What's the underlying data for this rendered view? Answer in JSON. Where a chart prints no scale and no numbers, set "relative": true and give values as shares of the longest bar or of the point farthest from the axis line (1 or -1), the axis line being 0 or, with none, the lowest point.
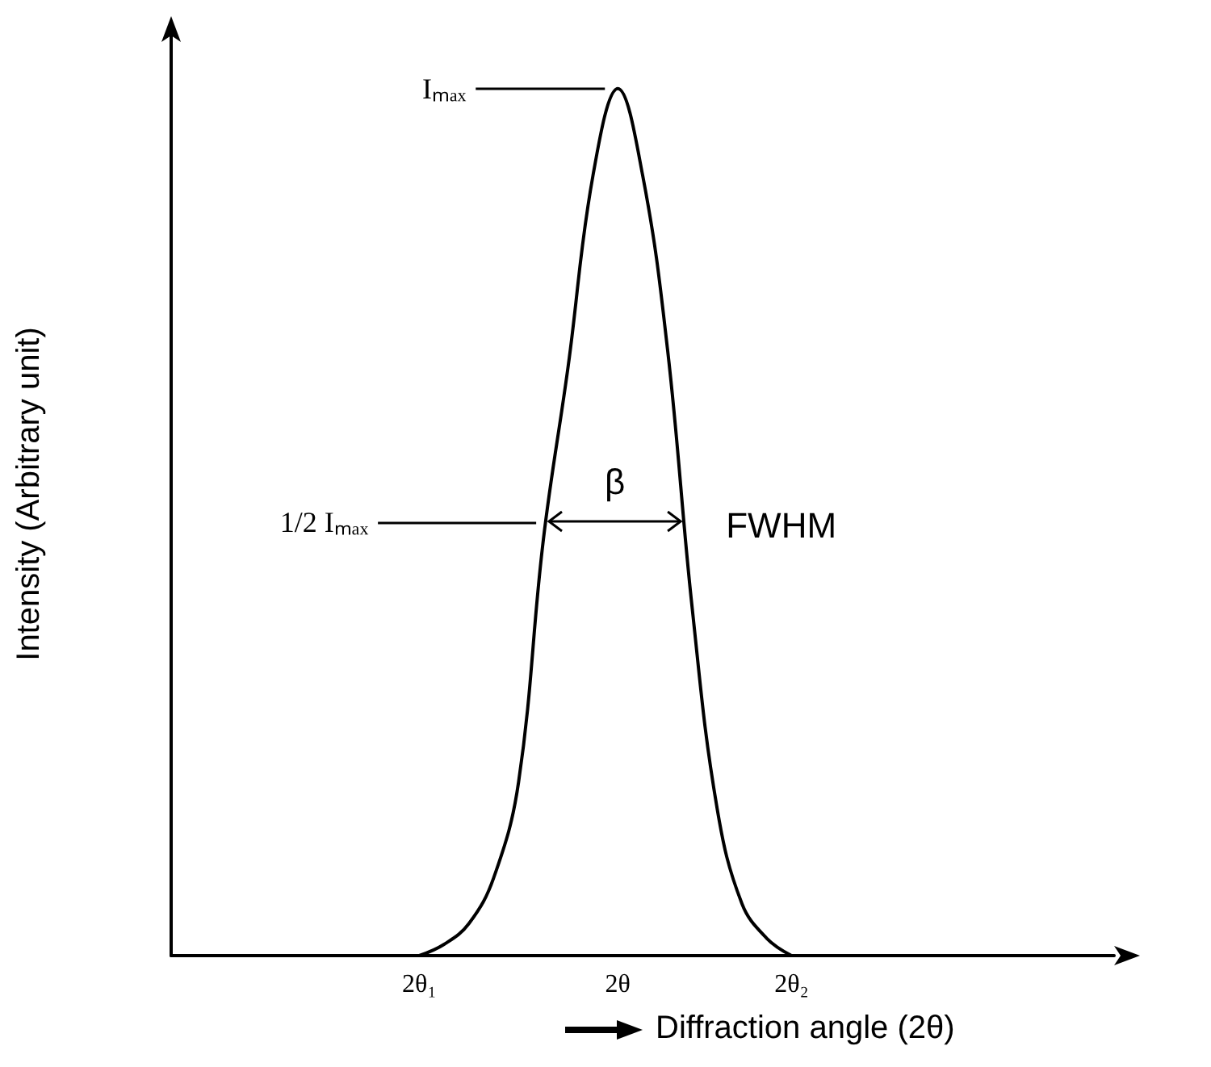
{
  "chart_data": {
    "type": "line",
    "relative": true,
    "xlabel": "Diffraction angle (2θ)",
    "ylabel": "Intensity (Arbitrary unit)",
    "categories": [
      null,
      null,
      null,
      null,
      null,
      null,
      null,
      null,
      null,
      null,
      "2θ₁",
      null,
      null,
      null,
      null,
      null,
      null,
      null,
      "2θ",
      null,
      null,
      null,
      null,
      null,
      null,
      "2θ₂",
      null,
      null,
      null,
      null,
      null,
      null,
      null,
      null,
      null,
      null,
      null,
      null,
      null
    ],
    "series": [
      {
        "color": "#000000",
        "values": [
          null,
          null,
          null,
          null,
          null,
          null,
          null,
          null,
          null,
          null,
          0,
          0.013,
          0.037,
          0.09,
          0.2,
          0.48,
          0.68,
          0.9,
          1,
          0.9,
          0.7,
          0.4,
          0.17,
          0.06,
          0.02,
          0,
          null,
          null,
          null,
          null,
          null,
          null,
          null,
          null,
          null,
          null,
          null,
          null,
          null
        ]
      }
    ],
    "annotations": [
      "Iₘₐₓ",
      "1/2 Iₘₐₓ",
      "β",
      "FWHM"
    ],
    "tick_labels": "x",
    "grid": false,
    "marker": "none",
    "line_style": "solid"
  }
}
